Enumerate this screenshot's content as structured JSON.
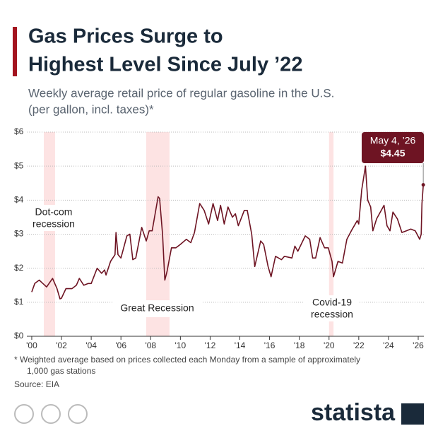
{
  "chart_data": {
    "type": "line",
    "title": [
      "Gas Prices Surge to",
      "Highest Level Since July ’22"
    ],
    "subtitle": [
      "Weekly average retail price of regular gasoline in the U.S.",
      "(per gallon, incl. taxes)*"
    ],
    "footnote": [
      "* Weighted average based on prices collected each Monday from a sample of approximately",
      "1,000 gas stations"
    ],
    "source": "Source: EIA",
    "brand": "statista",
    "color": "#6e1423",
    "grid": true,
    "xlim": [
      1999.67,
      2026.38
    ],
    "ylim": [
      0,
      6
    ],
    "yticks": [
      {
        "value": 0,
        "label": "$0"
      },
      {
        "value": 1,
        "label": "$1"
      },
      {
        "value": 2,
        "label": "$2"
      },
      {
        "value": 3,
        "label": "$3"
      },
      {
        "value": 4,
        "label": "$4"
      },
      {
        "value": 5,
        "label": "$5"
      },
      {
        "value": 6,
        "label": "$6"
      }
    ],
    "xticks": [
      {
        "value": 2000,
        "label": "'00"
      },
      {
        "value": 2002,
        "label": "'02"
      },
      {
        "value": 2004,
        "label": "'04"
      },
      {
        "value": 2006,
        "label": "'06"
      },
      {
        "value": 2008,
        "label": "'08"
      },
      {
        "value": 2010,
        "label": "'10"
      },
      {
        "value": 2012,
        "label": "'12"
      },
      {
        "value": 2014,
        "label": "'14"
      },
      {
        "value": 2016,
        "label": "'16"
      },
      {
        "value": 2018,
        "label": "'18"
      },
      {
        "value": 2020,
        "label": "'20"
      },
      {
        "value": 2022,
        "label": "'22"
      },
      {
        "value": 2024,
        "label": "'24"
      },
      {
        "value": 2026,
        "label": "'26"
      }
    ],
    "recessions": [
      {
        "label": [
          "Dot-com",
          "recession"
        ],
        "start": 2000.81,
        "end": 2001.57
      },
      {
        "label": [
          "Great Recession"
        ],
        "start": 2007.7,
        "end": 2009.27
      },
      {
        "label": [
          "Covid-19",
          "recession"
        ],
        "start": 2020.0,
        "end": 2020.3
      }
    ],
    "callout": {
      "x": 2026.34,
      "value": 4.45,
      "date_label": "May 4, ’26",
      "value_label": "$4.45"
    },
    "x": [
      2000.0,
      2000.2,
      2000.5,
      2000.75,
      2001.0,
      2001.4,
      2001.7,
      2001.9,
      2002.0,
      2002.3,
      2002.7,
      2003.0,
      2003.2,
      2003.5,
      2003.8,
      2004.0,
      2004.4,
      2004.7,
      2004.9,
      2005.0,
      2005.3,
      2005.6,
      2005.67,
      2005.8,
      2006.0,
      2006.4,
      2006.6,
      2006.8,
      2007.0,
      2007.4,
      2007.7,
      2007.9,
      2008.1,
      2008.5,
      2008.6,
      2008.8,
      2008.95,
      2009.1,
      2009.4,
      2009.7,
      2010.0,
      2010.4,
      2010.7,
      2010.95,
      2011.3,
      2011.6,
      2011.9,
      2012.2,
      2012.5,
      2012.7,
      2012.95,
      2013.2,
      2013.5,
      2013.7,
      2013.9,
      2014.3,
      2014.5,
      2014.8,
      2015.0,
      2015.4,
      2015.6,
      2015.9,
      2016.1,
      2016.4,
      2016.8,
      2017.0,
      2017.5,
      2017.7,
      2017.9,
      2018.4,
      2018.7,
      2018.9,
      2019.1,
      2019.4,
      2019.7,
      2019.95,
      2020.2,
      2020.3,
      2020.6,
      2020.9,
      2021.2,
      2021.5,
      2021.9,
      2022.0,
      2022.2,
      2022.45,
      2022.6,
      2022.8,
      2022.95,
      2023.2,
      2023.7,
      2023.9,
      2024.1,
      2024.3,
      2024.6,
      2024.9,
      2025.2,
      2025.5,
      2025.8,
      2026.1,
      2026.2,
      2026.25,
      2026.34
    ],
    "values": [
      1.3,
      1.55,
      1.65,
      1.55,
      1.45,
      1.7,
      1.4,
      1.1,
      1.12,
      1.4,
      1.4,
      1.5,
      1.7,
      1.5,
      1.55,
      1.55,
      2.0,
      1.85,
      1.95,
      1.8,
      2.2,
      2.4,
      3.05,
      2.4,
      2.3,
      2.95,
      3.0,
      2.25,
      2.3,
      3.2,
      2.8,
      3.1,
      3.1,
      4.1,
      4.05,
      3.0,
      1.65,
      1.9,
      2.6,
      2.6,
      2.7,
      2.85,
      2.75,
      3.05,
      3.9,
      3.7,
      3.3,
      3.9,
      3.4,
      3.85,
      3.3,
      3.8,
      3.5,
      3.6,
      3.25,
      3.7,
      3.7,
      3.0,
      2.05,
      2.8,
      2.7,
      2.05,
      1.75,
      2.35,
      2.25,
      2.35,
      2.3,
      2.65,
      2.5,
      2.95,
      2.85,
      2.3,
      2.3,
      2.9,
      2.6,
      2.6,
      2.2,
      1.75,
      2.2,
      2.15,
      2.85,
      3.1,
      3.4,
      3.3,
      4.3,
      5.0,
      4.0,
      3.8,
      3.1,
      3.45,
      3.85,
      3.25,
      3.1,
      3.65,
      3.45,
      3.05,
      3.1,
      3.15,
      3.1,
      2.85,
      3.0,
      3.9,
      4.45
    ]
  }
}
